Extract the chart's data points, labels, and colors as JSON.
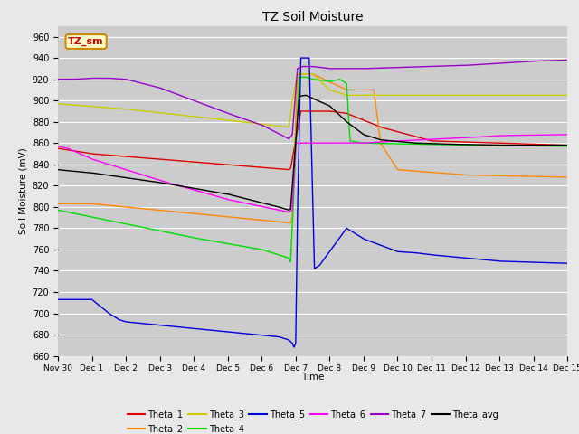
{
  "title": "TZ Soil Moisture",
  "ylabel": "Soil Moisture (mV)",
  "xlabel": "Time",
  "ylim": [
    660,
    970
  ],
  "bg_color": "#e8e8e8",
  "plot_bg": "#cccccc",
  "grid_color": "#bbbbbb",
  "series_colors": {
    "Theta_1": "#dd0000",
    "Theta_2": "#ff8800",
    "Theta_3": "#cccc00",
    "Theta_4": "#00dd00",
    "Theta_5": "#0000dd",
    "Theta_6": "#ff00ff",
    "Theta_7": "#9900cc",
    "Theta_avg": "#000000"
  },
  "xtick_labels": [
    "Nov 30",
    "Dec 1",
    "Dec 2",
    "Dec 3",
    "Dec 4",
    "Dec 5",
    "Dec 6",
    "Dec 7",
    "Dec 8",
    "Dec 9",
    "Dec 10",
    "Dec 11",
    "Dec 12",
    "Dec 13",
    "Dec 14",
    "Dec 15"
  ],
  "annotation": {
    "text": "TZ_sm",
    "color": "#cc0000",
    "bg": "#ffffcc",
    "edge": "#cc8800"
  }
}
